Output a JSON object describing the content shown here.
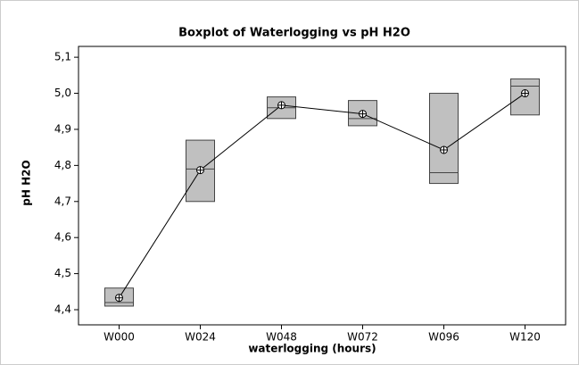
{
  "chart_data": {
    "type": "box",
    "title": "Boxplot of Waterlogging vs pH H2O",
    "x_label": "waterlogging (hours)",
    "y_label": "pH H2O",
    "categories": [
      "W000",
      "W024",
      "W048",
      "W072",
      "W096",
      "W120"
    ],
    "q1": [
      4.41,
      4.7,
      4.93,
      4.91,
      4.75,
      4.94
    ],
    "median": [
      4.42,
      4.79,
      4.96,
      4.93,
      4.78,
      5.02
    ],
    "q3": [
      4.46,
      4.87,
      4.99,
      4.98,
      5.0,
      5.04
    ],
    "mean": [
      4.433,
      4.787,
      4.967,
      4.943,
      4.843,
      5.0
    ],
    "color": "#c0c0c0",
    "ylim": [
      4.358,
      5.13
    ],
    "yticks": [
      {
        "value": 4.4,
        "label": "4,4"
      },
      {
        "value": 4.5,
        "label": "4,5"
      },
      {
        "value": 4.6,
        "label": "4,6"
      },
      {
        "value": 4.7,
        "label": "4,7"
      },
      {
        "value": 4.8,
        "label": "4,8"
      },
      {
        "value": 4.9,
        "label": "4,9"
      },
      {
        "value": 5.0,
        "label": "5,0"
      },
      {
        "value": 5.1,
        "label": "5,1"
      }
    ]
  }
}
